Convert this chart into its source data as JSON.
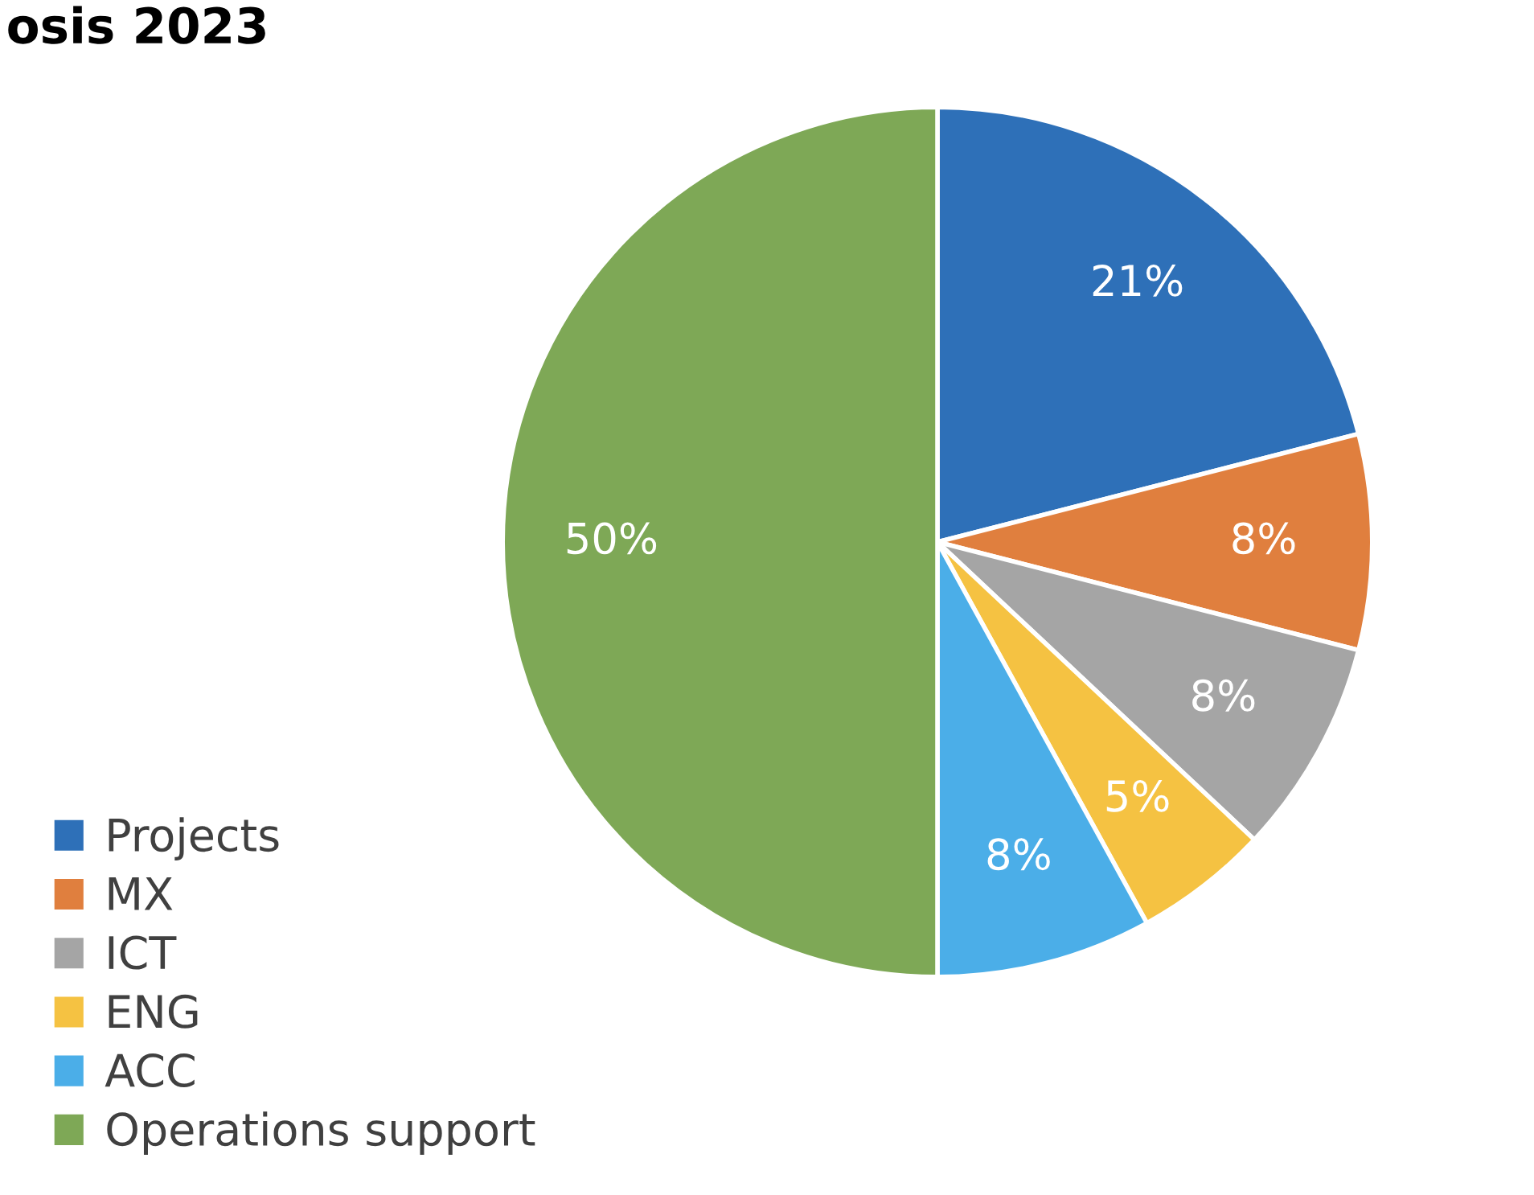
{
  "chart_data": {
    "type": "pie",
    "title": "osis 2023",
    "categories": [
      "Projects",
      "MX",
      "ICT",
      "ENG",
      "ACC",
      "Operations support"
    ],
    "values": [
      21,
      8,
      8,
      5,
      8,
      50
    ],
    "colors": [
      "#2e70b8",
      "#e07f3e",
      "#a5a5a5",
      "#f5c242",
      "#4baee8",
      "#7ea856"
    ],
    "value_labels": [
      "21%",
      "8%",
      "8%",
      "5%",
      "8%",
      "50%"
    ],
    "legend": "bottom left"
  }
}
